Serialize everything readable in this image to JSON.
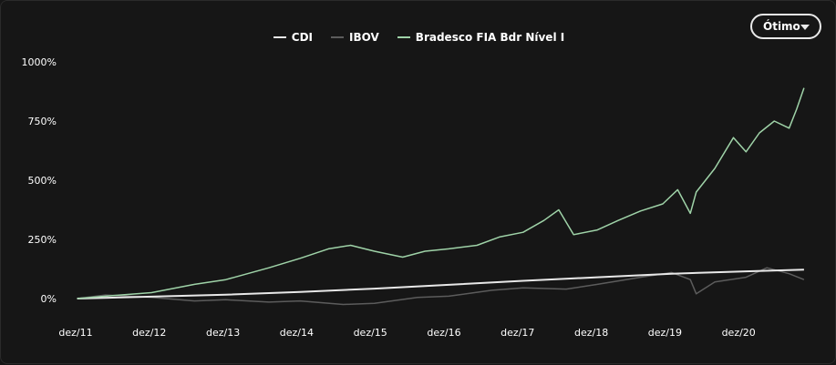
{
  "period_select": {
    "label": "Ótimo"
  },
  "legend": [
    {
      "name": "CDI",
      "color": "#e8e8e8"
    },
    {
      "name": "IBOV",
      "color": "#5c5c5c"
    },
    {
      "name": "Bradesco FIA Bdr Nível I",
      "color": "#9fd3a8"
    }
  ],
  "chart_data": {
    "type": "line",
    "x_ticks": [
      "dez/11",
      "dez/12",
      "dez/13",
      "dez/14",
      "dez/15",
      "dez/16",
      "dez/17",
      "dez/18",
      "dez/19",
      "dez/20"
    ],
    "y_ticks": [
      "1000%",
      "750%",
      "500%",
      "250%",
      "0%"
    ],
    "y_unit": "%",
    "ylim": [
      0,
      1000
    ],
    "xlim": [
      2011.9,
      2021.75
    ],
    "grid": false,
    "legend_position": "top-center",
    "series": [
      {
        "name": "CDI",
        "color": "#e8e8e8",
        "x": [
          2011.92,
          2012.92,
          2013.92,
          2014.92,
          2015.92,
          2016.92,
          2017.92,
          2018.92,
          2019.92,
          2020.92,
          2021.7
        ],
        "values": [
          0,
          8,
          16,
          28,
          42,
          58,
          75,
          90,
          105,
          115,
          122
        ]
      },
      {
        "name": "IBOV",
        "color": "#5c5c5c",
        "x": [
          2011.92,
          2012.3,
          2012.92,
          2013.5,
          2013.92,
          2014.5,
          2014.92,
          2015.5,
          2015.92,
          2016.5,
          2016.92,
          2017.5,
          2017.92,
          2018.5,
          2018.92,
          2019.5,
          2019.92,
          2020.17,
          2020.25,
          2020.5,
          2020.92,
          2021.2,
          2021.5,
          2021.7
        ],
        "values": [
          0,
          15,
          5,
          -10,
          -5,
          -15,
          -10,
          -25,
          -20,
          5,
          10,
          35,
          45,
          40,
          60,
          90,
          110,
          80,
          20,
          70,
          90,
          130,
          105,
          80
        ]
      },
      {
        "name": "Bradesco FIA Bdr Nível I",
        "color": "#9fd3a8",
        "x": [
          2011.92,
          2012.5,
          2012.92,
          2013.5,
          2013.92,
          2014.5,
          2014.92,
          2015.3,
          2015.6,
          2015.92,
          2016.3,
          2016.6,
          2016.92,
          2017.3,
          2017.6,
          2017.92,
          2018.2,
          2018.4,
          2018.6,
          2018.92,
          2019.2,
          2019.5,
          2019.8,
          2020.0,
          2020.17,
          2020.25,
          2020.5,
          2020.75,
          2020.92,
          2021.1,
          2021.3,
          2021.5,
          2021.6,
          2021.7
        ],
        "values": [
          0,
          15,
          25,
          60,
          80,
          130,
          170,
          210,
          225,
          200,
          175,
          200,
          210,
          225,
          260,
          280,
          330,
          375,
          270,
          290,
          330,
          370,
          400,
          460,
          360,
          450,
          550,
          680,
          620,
          700,
          750,
          720,
          800,
          890
        ]
      }
    ]
  }
}
